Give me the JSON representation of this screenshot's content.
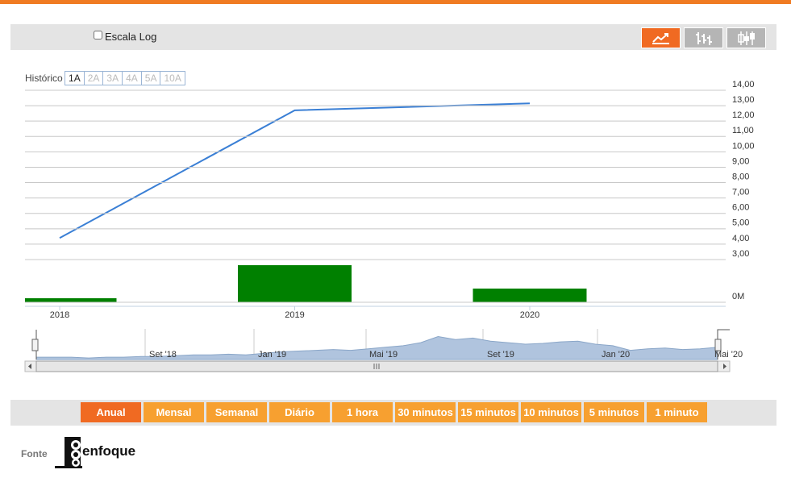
{
  "toolbar": {
    "log_scale_label": "Escala Log"
  },
  "history": {
    "label": "Histórico",
    "ranges": [
      "1A",
      "2A",
      "3A",
      "4A",
      "5A",
      "10A"
    ],
    "active": 0
  },
  "chart_data": {
    "type": "line",
    "categories": [
      "2018",
      "2019",
      "2020"
    ],
    "series": [
      {
        "color": "#3a7fd5",
        "values": [
          4.4,
          12.7,
          13.15
        ]
      },
      {
        "type": "bar",
        "axis": "y2",
        "color": "#008000",
        "values": [
          5,
          46,
          17
        ]
      }
    ],
    "ylim": [
      3,
      14
    ],
    "yticks": [
      {
        "value": 3,
        "label": "3,00"
      },
      {
        "value": 4,
        "label": "4,00"
      },
      {
        "value": 5,
        "label": "5,00"
      },
      {
        "value": 6,
        "label": "6,00"
      },
      {
        "value": 7,
        "label": "7,00"
      },
      {
        "value": 8,
        "label": "8,00"
      },
      {
        "value": 9,
        "label": "9,00"
      },
      {
        "value": 10,
        "label": "10,00"
      },
      {
        "value": 11,
        "label": "11,00"
      },
      {
        "value": 12,
        "label": "12,00"
      },
      {
        "value": 13,
        "label": "13,00"
      },
      {
        "value": 14,
        "label": "14,00"
      }
    ],
    "y2lim": [
      0,
      50
    ],
    "y2ticks": [
      {
        "value": 0,
        "label": "0M"
      }
    ],
    "grid": true
  },
  "navigator": {
    "color": "#b0c4de",
    "values": [
      3,
      3,
      3,
      2,
      3,
      3,
      4,
      4,
      5,
      6,
      6,
      7,
      6,
      8,
      10,
      11,
      12,
      13,
      12,
      14,
      16,
      18,
      22,
      30,
      26,
      28,
      24,
      22,
      20,
      21,
      23,
      24,
      20,
      18,
      12,
      14,
      15,
      13,
      14,
      16
    ],
    "ylim": [
      0,
      40
    ],
    "labels": [
      "Set '18",
      "Jan '19",
      "Mai '19",
      "Set '19",
      "Jan '20",
      "Mai '20"
    ]
  },
  "periods": {
    "buttons": [
      "Anual",
      "Mensal",
      "Semanal",
      "Diário",
      "1 hora",
      "30 minutos",
      "15 minutos",
      "10 minutos",
      "5 minutos",
      "1 minuto"
    ],
    "active": 0
  },
  "footer": {
    "source_label": "Fonte",
    "logo_text": "enfoque"
  }
}
